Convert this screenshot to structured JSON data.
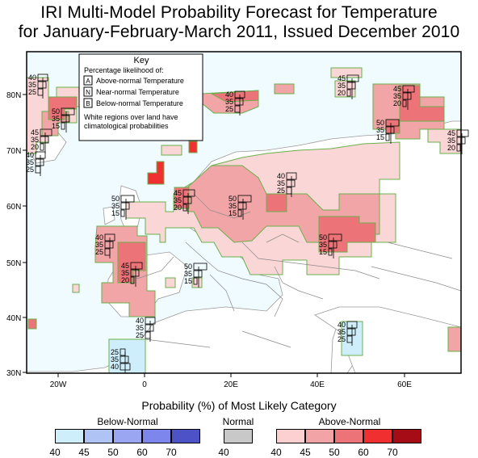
{
  "title": {
    "line1": "IRI Multi-Model Probability Forecast for Temperature",
    "line2": "for January-February-March 2011, Issued December 2010"
  },
  "key": {
    "heading": "Key",
    "subheading": "Percentage likelihood of:",
    "rows": [
      {
        "letter": "A",
        "label": "Above-normal Temperature"
      },
      {
        "letter": "N",
        "label": "Near-normal Temperature"
      },
      {
        "letter": "B",
        "label": "Below-normal Temperature"
      }
    ],
    "note_line1": "White regions over land have",
    "note_line2": "climatological probabilities"
  },
  "axes": {
    "lat_labels": [
      "80N",
      "70N",
      "60N",
      "50N",
      "40N",
      "30N"
    ],
    "lon_labels": [
      "20W",
      "0",
      "20E",
      "40E",
      "60E"
    ]
  },
  "legend": {
    "title": "Probability (%) of Most Likely Category",
    "below_label": "Below-Normal",
    "normal_label": "Normal",
    "above_label": "Above-Normal",
    "below_ticks": [
      "40",
      "45",
      "50",
      "60",
      "70"
    ],
    "normal_ticks": [
      "40"
    ],
    "above_ticks": [
      "40",
      "45",
      "50",
      "60",
      "70"
    ],
    "below_colors": [
      "#cdeefa",
      "#afc3f4",
      "#9aa6f1",
      "#7d86ec",
      "#4d52c6"
    ],
    "normal_color": "#c8c8c8",
    "above_colors": [
      "#fcd0d0",
      "#f1a3a5",
      "#ec7479",
      "#f03030",
      "#a50c16"
    ]
  },
  "forecast_boxes": [
    {
      "a": "40",
      "n": "35",
      "b": "25"
    },
    {
      "a": "50",
      "n": "35",
      "b": "15"
    },
    {
      "a": "45",
      "n": "35",
      "b": "20"
    },
    {
      "a": "40",
      "n": "35",
      "b": "25"
    },
    {
      "a": "40",
      "n": "35",
      "b": "25"
    },
    {
      "a": "45",
      "n": "35",
      "b": "20"
    },
    {
      "a": "45",
      "n": "35",
      "b": "20"
    },
    {
      "a": "50",
      "n": "35",
      "b": "15"
    },
    {
      "a": "45",
      "n": "35",
      "b": "20"
    },
    {
      "a": "40",
      "n": "35",
      "b": "25"
    },
    {
      "a": "45",
      "n": "35",
      "b": "20"
    },
    {
      "a": "50",
      "n": "35",
      "b": "15"
    },
    {
      "a": "50",
      "n": "35",
      "b": "15"
    },
    {
      "a": "40",
      "n": "35",
      "b": "25"
    },
    {
      "a": "45",
      "n": "35",
      "b": "20"
    },
    {
      "a": "50",
      "n": "35",
      "b": "15"
    },
    {
      "a": "50",
      "n": "35",
      "b": "15"
    },
    {
      "a": "40",
      "n": "35",
      "b": "25"
    },
    {
      "a": "40",
      "n": "35",
      "b": "25"
    },
    {
      "a": "25",
      "n": "35",
      "b": "40"
    },
    {
      "a": "25",
      "n": "35",
      "b": "40"
    }
  ]
}
